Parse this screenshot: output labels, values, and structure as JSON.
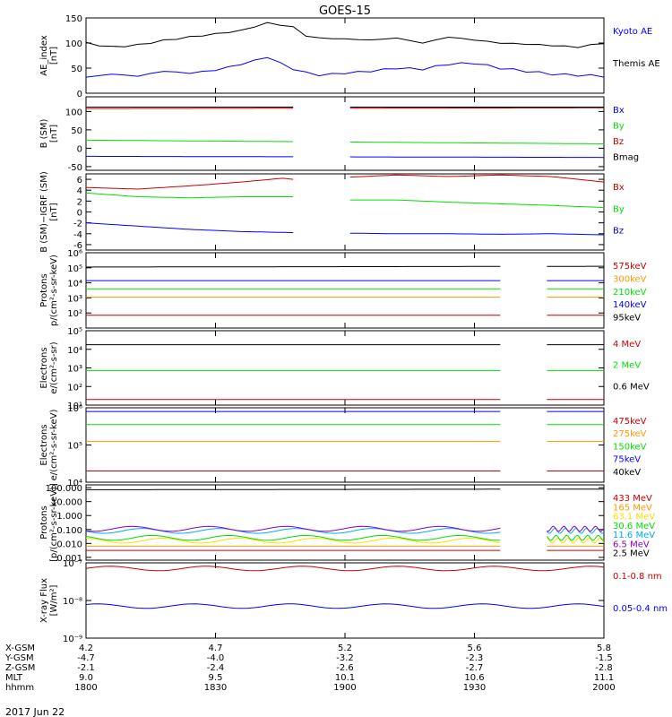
{
  "title": "GOES-15",
  "date_label": "2017 Jun 22",
  "colors": {
    "black": "#000000",
    "blue": "#0000ff",
    "green": "#00e000",
    "red": "#cc0000",
    "orange": "#ff9900",
    "cyan": "#00aaff",
    "purple": "#8800cc",
    "yellow": "#ffdd00"
  },
  "chart_data": [
    {
      "type": "line",
      "id": "ae",
      "ylabel": "AE_index\n[nT]",
      "ylim": [
        0,
        150
      ],
      "ticks": [
        "0",
        "50",
        "100",
        "150"
      ],
      "tick_values": [
        0,
        50,
        100,
        150
      ],
      "series": [
        {
          "name": "Kyoto AE",
          "color": "blue",
          "x": [
            0,
            0.05,
            0.1,
            0.15,
            0.2,
            0.25,
            0.3,
            0.35,
            0.4,
            0.42,
            0.45,
            0.5,
            0.55,
            0.6,
            0.65,
            0.7,
            0.75,
            0.8,
            0.85,
            0.9,
            0.95,
            1.0
          ],
          "values": [
            32,
            38,
            34,
            44,
            40,
            46,
            58,
            72,
            48,
            42,
            36,
            40,
            44,
            50,
            48,
            58,
            60,
            50,
            44,
            38,
            36,
            34
          ]
        },
        {
          "name": "Themis AE",
          "color": "black",
          "x": [
            0,
            0.05,
            0.1,
            0.15,
            0.2,
            0.25,
            0.3,
            0.35,
            0.4,
            0.42,
            0.45,
            0.5,
            0.55,
            0.6,
            0.65,
            0.7,
            0.75,
            0.8,
            0.85,
            0.9,
            0.95,
            1.0
          ],
          "values": [
            100,
            92,
            96,
            105,
            112,
            118,
            125,
            140,
            132,
            115,
            110,
            108,
            106,
            110,
            100,
            112,
            106,
            100,
            98,
            95,
            92,
            100
          ]
        }
      ]
    },
    {
      "type": "line",
      "id": "bsm",
      "ylabel": "B (SM)\n[nT]",
      "ylim": [
        -60,
        140
      ],
      "ticks": [
        "-50",
        "0",
        "50",
        "100"
      ],
      "tick_values": [
        -50,
        0,
        50,
        100
      ],
      "gap": [
        0.4,
        0.51
      ],
      "series": [
        {
          "name": "Bx",
          "color": "blue",
          "x": [
            0,
            1
          ],
          "values": [
            -22,
            -25
          ]
        },
        {
          "name": "By",
          "color": "green",
          "x": [
            0,
            1
          ],
          "values": [
            22,
            12
          ]
        },
        {
          "name": "Bz",
          "color": "red",
          "x": [
            0,
            1
          ],
          "values": [
            108,
            110
          ]
        },
        {
          "name": "Bmag",
          "color": "black",
          "x": [
            0,
            1
          ],
          "values": [
            112,
            112
          ]
        }
      ]
    },
    {
      "type": "line",
      "id": "bigrf",
      "ylabel": "B (SM)−IGRF (SM)\n[nT]",
      "ylim": [
        -7,
        7
      ],
      "ticks": [
        "-6",
        "-4",
        "-2",
        "0",
        "2",
        "4",
        "6"
      ],
      "tick_values": [
        -6,
        -4,
        -2,
        0,
        2,
        4,
        6
      ],
      "gap": [
        0.4,
        0.51
      ],
      "series": [
        {
          "name": "Bx",
          "color": "red",
          "x": [
            0,
            0.1,
            0.2,
            0.3,
            0.38,
            0.4,
            0.51,
            0.6,
            0.7,
            0.8,
            0.9,
            1.0
          ],
          "values": [
            4.5,
            4.2,
            4.8,
            5.5,
            6.2,
            6.0,
            6.4,
            6.8,
            6.5,
            6.8,
            6.5,
            5.5
          ]
        },
        {
          "name": "By",
          "color": "green",
          "x": [
            0,
            0.1,
            0.2,
            0.3,
            0.4,
            0.51,
            0.6,
            0.7,
            0.8,
            0.9,
            1.0
          ],
          "values": [
            3.5,
            2.8,
            2.6,
            2.8,
            2.8,
            2.2,
            2.2,
            1.8,
            1.5,
            1.2,
            0.8
          ]
        },
        {
          "name": "Bz",
          "color": "blue",
          "x": [
            0,
            0.1,
            0.2,
            0.3,
            0.4,
            0.51,
            0.6,
            0.7,
            0.8,
            0.9,
            1.0
          ],
          "values": [
            -2.0,
            -2.6,
            -3.2,
            -3.6,
            -3.8,
            -3.9,
            -4.0,
            -4.0,
            -4.1,
            -4.0,
            -4.2
          ]
        }
      ]
    },
    {
      "type": "line",
      "id": "protons1",
      "log": true,
      "ylabel": "Protons\np/(cm²-s-sr-keV)",
      "ylim": [
        1,
        6
      ],
      "ticks": [
        "10²",
        "10³",
        "10⁴",
        "10⁵",
        "10⁶"
      ],
      "tick_values": [
        2,
        3,
        4,
        5,
        6
      ],
      "gap": [
        0.8,
        0.89
      ],
      "series": [
        {
          "name": "575keV",
          "color": "red",
          "x": [
            0,
            1
          ],
          "values": [
            1.85,
            1.85
          ]
        },
        {
          "name": "300keV",
          "color": "orange",
          "x": [
            0,
            1
          ],
          "values": [
            3.05,
            3.05
          ]
        },
        {
          "name": "210keV",
          "color": "green",
          "x": [
            0,
            1
          ],
          "values": [
            3.6,
            3.6
          ]
        },
        {
          "name": "140keV",
          "color": "blue",
          "x": [
            0,
            1
          ],
          "values": [
            4.15,
            4.15
          ]
        },
        {
          "name": "95keV",
          "color": "black",
          "x": [
            0,
            1
          ],
          "values": [
            5.05,
            5.1
          ]
        }
      ]
    },
    {
      "type": "line",
      "id": "electrons1",
      "log": true,
      "ylabel": "Electrons\ne/(cm²-s-sr)",
      "ylim": [
        1,
        5
      ],
      "ticks": [
        "10¹",
        "10²",
        "10³",
        "10⁴",
        "10⁵"
      ],
      "tick_values": [
        1,
        2,
        3,
        4,
        5
      ],
      "gap": [
        0.8,
        0.89
      ],
      "series": [
        {
          "name": "4 MeV",
          "color": "red",
          "x": [
            0,
            1
          ],
          "values": [
            1.3,
            1.3
          ]
        },
        {
          "name": "2 MeV",
          "color": "green",
          "x": [
            0,
            1
          ],
          "values": [
            2.85,
            2.85
          ]
        },
        {
          "name": "0.6 MeV",
          "color": "black",
          "x": [
            0,
            1
          ],
          "values": [
            4.25,
            4.25
          ]
        }
      ]
    },
    {
      "type": "line",
      "id": "electrons2",
      "log": true,
      "ylabel": "Electrons\ne/(cm²-s-sr-keV)",
      "ylim": [
        4,
        6
      ],
      "ticks": [
        "10⁴",
        "10⁵",
        "10⁶"
      ],
      "tick_values": [
        4,
        5,
        6
      ],
      "gap": [
        0.8,
        0.89
      ],
      "series": [
        {
          "name": "475keV",
          "color": "red",
          "x": [
            0,
            1
          ],
          "values": [
            4.3,
            4.3
          ]
        },
        {
          "name": "275keV",
          "color": "orange",
          "x": [
            0,
            1
          ],
          "values": [
            5.1,
            5.1
          ]
        },
        {
          "name": "150keV",
          "color": "green",
          "x": [
            0,
            1
          ],
          "values": [
            5.55,
            5.55
          ]
        },
        {
          "name": "75keV",
          "color": "blue",
          "x": [
            0,
            1
          ],
          "values": [
            5.9,
            5.9
          ]
        },
        {
          "name": "40keV",
          "color": "black",
          "x": [
            0,
            1
          ],
          "values": [
            6.0,
            6.0
          ]
        }
      ]
    },
    {
      "type": "line",
      "id": "protons2",
      "log": true,
      "ylabel": "Protons\n[p/(cm²-s-sr-keV)]",
      "ylim": [
        -3.2,
        2.2
      ],
      "ticks": [
        "0.001",
        "0.010",
        "0.100",
        "1.000",
        "10.000",
        "100.000"
      ],
      "tick_values": [
        -3,
        -2,
        -1,
        0,
        1,
        2
      ],
      "gap": [
        0.8,
        0.89
      ],
      "series": [
        {
          "name": "433 MeV",
          "color": "red",
          "x": [
            0,
            1
          ],
          "values": [
            -2.5,
            -2.5
          ]
        },
        {
          "name": "165 MeV",
          "color": "orange",
          "x": [
            0,
            1
          ],
          "values": [
            -2.2,
            -2.2
          ]
        },
        {
          "name": "63.1 MeV",
          "color": "yellow",
          "x": [
            0,
            1
          ],
          "values": [
            -1.8,
            -1.8
          ]
        },
        {
          "name": "30.6 MeV",
          "color": "green",
          "x": [
            0,
            1
          ],
          "values": [
            -1.6,
            -1.6
          ]
        },
        {
          "name": "11.6 MeV",
          "color": "cyan",
          "x": [
            0,
            1
          ],
          "values": [
            -1.1,
            -1.1
          ]
        },
        {
          "name": "6.5 MeV",
          "color": "purple",
          "x": [
            0,
            1
          ],
          "values": [
            -0.95,
            -0.95
          ]
        },
        {
          "name": "2.5 MeV",
          "color": "black",
          "x": [
            0,
            1
          ],
          "values": [
            1.85,
            1.9
          ]
        }
      ]
    },
    {
      "type": "line",
      "id": "xray",
      "log": true,
      "ylabel": "X-ray Flux\n[W/m²]",
      "ylim": [
        -9,
        -7
      ],
      "ticks": [
        "10⁻⁹",
        "10⁻⁸",
        "10⁻⁷"
      ],
      "tick_values": [
        -9,
        -8,
        -7
      ],
      "series": [
        {
          "name": "0.1-0.8 nm",
          "color": "red",
          "x": [
            0,
            1
          ],
          "values": [
            -7.15,
            -7.15
          ]
        },
        {
          "name": "0.05-0.4 nm",
          "color": "blue",
          "x": [
            0,
            1
          ],
          "values": [
            -8.15,
            -8.15
          ]
        }
      ]
    }
  ],
  "xaxis": {
    "rows": [
      {
        "label": "X-GSM",
        "values": [
          "4.2",
          "4.7",
          "5.2",
          "5.6",
          "5.8"
        ]
      },
      {
        "label": "Y-GSM",
        "values": [
          "-4.7",
          "-4.0",
          "-3.2",
          "-2.3",
          "-1.5"
        ]
      },
      {
        "label": "Z-GSM",
        "values": [
          "-2.1",
          "-2.4",
          "-2.6",
          "-2.7",
          "-2.8"
        ]
      },
      {
        "label": "MLT",
        "values": [
          "9.0",
          "9.5",
          "10.1",
          "10.6",
          "11.1"
        ]
      },
      {
        "label": "hhmm",
        "values": [
          "1800",
          "1830",
          "1900",
          "1930",
          "2000"
        ]
      }
    ]
  }
}
